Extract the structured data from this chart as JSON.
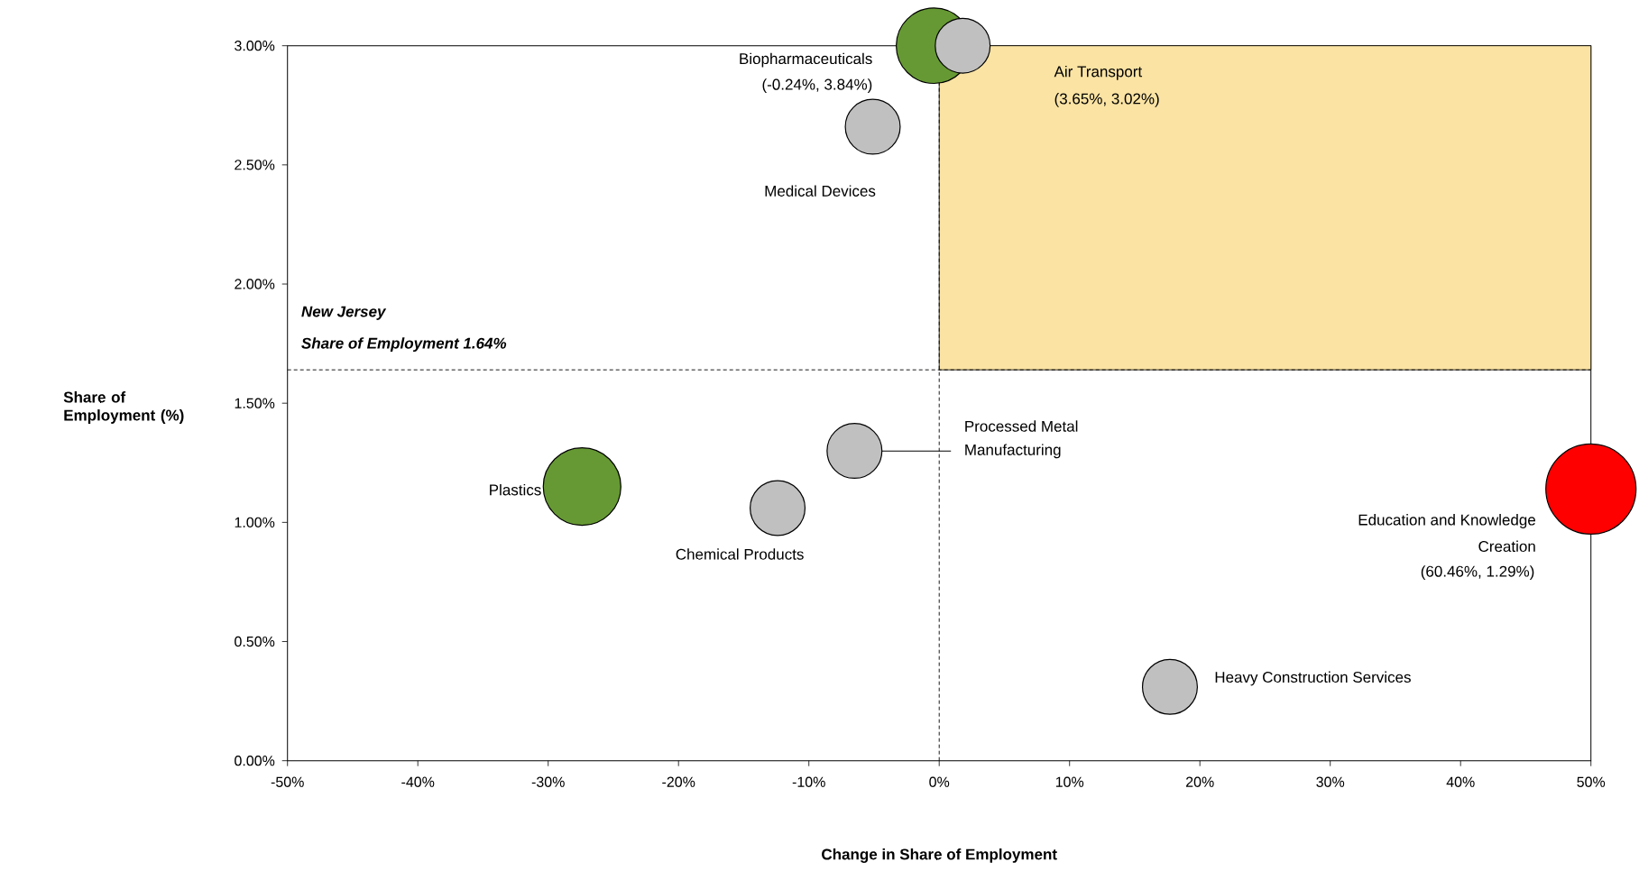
{
  "chart_data": {
    "type": "bubble",
    "xlabel": "Change in Share of Employment",
    "ylabel": "Share of Employment (%)",
    "x": [
      -0.4,
      1.8,
      -5.1,
      -27.4,
      -12.4,
      -6.5,
      50,
      17.7
    ],
    "values": [
      3.0,
      3.0,
      2.66,
      1.15,
      1.06,
      1.3,
      1.14,
      0.31
    ],
    "sizes": [
      0.7,
      0.37,
      0.37,
      0.74,
      0.37,
      0.37,
      1,
      0.37
    ],
    "colors": [
      "#669933",
      "#c0c0c0",
      "#c0c0c0",
      "#669933",
      "#c0c0c0",
      "#c0c0c0",
      "#ff0000",
      "#c0c0c0"
    ],
    "xlim": [
      -50,
      50
    ],
    "ylim": [
      0,
      3
    ],
    "xticks": [
      {
        "value": -50,
        "label": "-50%"
      },
      {
        "value": -40,
        "label": "-40%"
      },
      {
        "value": -30,
        "label": "-30%"
      },
      {
        "value": -20,
        "label": "-20%"
      },
      {
        "value": -10,
        "label": "-10%"
      },
      {
        "value": 0,
        "label": "0%"
      },
      {
        "value": 10,
        "label": "10%"
      },
      {
        "value": 20,
        "label": "20%"
      },
      {
        "value": 30,
        "label": "30%"
      },
      {
        "value": 40,
        "label": "40%"
      },
      {
        "value": 50,
        "label": "50%"
      }
    ],
    "yticks": [
      {
        "value": 0,
        "label": "0.00%"
      },
      {
        "value": 0.5,
        "label": "0.50%"
      },
      {
        "value": 1,
        "label": "1.00%"
      },
      {
        "value": 1.5,
        "label": "1.50%"
      },
      {
        "value": 2,
        "label": "2.00%"
      },
      {
        "value": 2.5,
        "label": "2.50%"
      },
      {
        "value": 3,
        "label": "3.00%"
      }
    ],
    "ref_lines": [
      {
        "axis": "y",
        "value": 1.64,
        "line_style": "dashed"
      },
      {
        "axis": "x",
        "value": 0,
        "line_style": "dashed"
      }
    ],
    "bands": [
      {
        "axis": "y",
        "from": 1.64,
        "to": 3.0,
        "color": "#fae3a3"
      }
    ],
    "annotations": [
      "Biopharmaceuticals",
      "(-0.24%, 3.84%)",
      "Air Transport",
      "(3.65%, 3.02%)",
      "Medical Devices",
      "Plastics",
      "Chemical Products",
      "Processed Metal",
      "Manufacturing",
      "Education and Knowledge",
      "Creation",
      "(60.46%, 1.29%)",
      "Heavy Construction Services",
      "New Jersey",
      "Share of Employment 1.64%"
    ],
    "grid": false,
    "marker": "circle"
  }
}
